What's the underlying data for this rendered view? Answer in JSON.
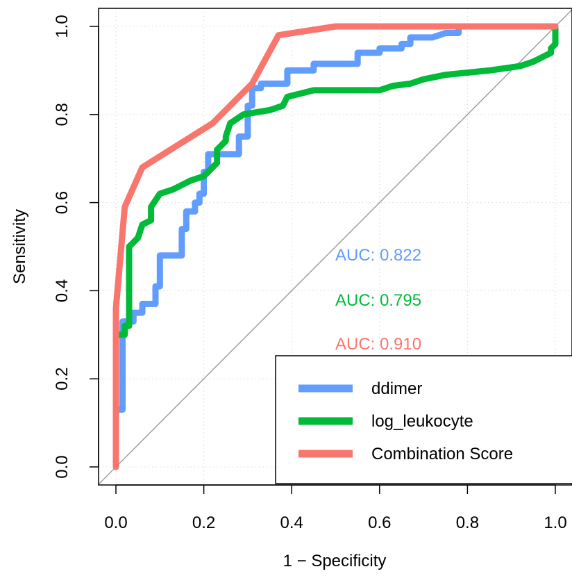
{
  "chart_data": {
    "type": "line",
    "title": "",
    "xlabel": "1 − Specificity",
    "ylabel": "Sensitivity",
    "xlim": [
      0,
      1
    ],
    "ylim": [
      0,
      1
    ],
    "x_ticks": [
      "0.0",
      "0.2",
      "0.4",
      "0.6",
      "0.8",
      "1.0"
    ],
    "y_ticks": [
      "0.0",
      "0.2",
      "0.4",
      "0.6",
      "0.8",
      "1.0"
    ],
    "grid": true,
    "diagonal_reference": true,
    "series": [
      {
        "name": "ddimer",
        "color": "#619CFF",
        "auc_label": "AUC: 0.822",
        "points": [
          [
            0,
            0
          ],
          [
            0,
            0.13
          ],
          [
            0.015,
            0.13
          ],
          [
            0.015,
            0.33
          ],
          [
            0.04,
            0.33
          ],
          [
            0.04,
            0.35
          ],
          [
            0.06,
            0.35
          ],
          [
            0.06,
            0.37
          ],
          [
            0.09,
            0.37
          ],
          [
            0.09,
            0.41
          ],
          [
            0.1,
            0.41
          ],
          [
            0.1,
            0.48
          ],
          [
            0.15,
            0.48
          ],
          [
            0.15,
            0.54
          ],
          [
            0.16,
            0.54
          ],
          [
            0.16,
            0.58
          ],
          [
            0.18,
            0.58
          ],
          [
            0.18,
            0.6
          ],
          [
            0.19,
            0.6
          ],
          [
            0.19,
            0.62
          ],
          [
            0.2,
            0.62
          ],
          [
            0.2,
            0.67
          ],
          [
            0.21,
            0.67
          ],
          [
            0.21,
            0.71
          ],
          [
            0.28,
            0.71
          ],
          [
            0.28,
            0.75
          ],
          [
            0.3,
            0.75
          ],
          [
            0.3,
            0.82
          ],
          [
            0.31,
            0.82
          ],
          [
            0.31,
            0.86
          ],
          [
            0.33,
            0.86
          ],
          [
            0.33,
            0.87
          ],
          [
            0.37,
            0.87
          ],
          [
            0.39,
            0.87
          ],
          [
            0.39,
            0.9
          ],
          [
            0.45,
            0.9
          ],
          [
            0.45,
            0.915
          ],
          [
            0.55,
            0.915
          ],
          [
            0.55,
            0.94
          ],
          [
            0.6,
            0.94
          ],
          [
            0.6,
            0.95
          ],
          [
            0.65,
            0.95
          ],
          [
            0.65,
            0.96
          ],
          [
            0.67,
            0.96
          ],
          [
            0.67,
            0.975
          ],
          [
            0.72,
            0.975
          ],
          [
            0.75,
            0.985
          ],
          [
            0.78,
            0.985
          ],
          [
            0.78,
            1
          ],
          [
            1,
            1
          ]
        ]
      },
      {
        "name": "log_leukocyte",
        "color": "#00BA38",
        "auc_label": "AUC: 0.795",
        "points": [
          [
            0,
            0
          ],
          [
            0,
            0.3
          ],
          [
            0.02,
            0.3
          ],
          [
            0.02,
            0.32
          ],
          [
            0.03,
            0.32
          ],
          [
            0.03,
            0.5
          ],
          [
            0.05,
            0.52
          ],
          [
            0.06,
            0.55
          ],
          [
            0.08,
            0.56
          ],
          [
            0.08,
            0.59
          ],
          [
            0.1,
            0.62
          ],
          [
            0.13,
            0.63
          ],
          [
            0.17,
            0.65
          ],
          [
            0.2,
            0.66
          ],
          [
            0.23,
            0.69
          ],
          [
            0.23,
            0.72
          ],
          [
            0.25,
            0.74
          ],
          [
            0.25,
            0.75
          ],
          [
            0.26,
            0.78
          ],
          [
            0.29,
            0.8
          ],
          [
            0.32,
            0.805
          ],
          [
            0.35,
            0.81
          ],
          [
            0.38,
            0.82
          ],
          [
            0.39,
            0.84
          ],
          [
            0.45,
            0.855
          ],
          [
            0.6,
            0.855
          ],
          [
            0.63,
            0.865
          ],
          [
            0.67,
            0.87
          ],
          [
            0.7,
            0.88
          ],
          [
            0.75,
            0.89
          ],
          [
            0.85,
            0.9
          ],
          [
            0.92,
            0.91
          ],
          [
            0.95,
            0.92
          ],
          [
            0.97,
            0.93
          ],
          [
            0.99,
            0.94
          ],
          [
            0.99,
            0.95
          ],
          [
            1,
            0.96
          ],
          [
            1,
            1
          ]
        ]
      },
      {
        "name": "Combination Score",
        "color": "#F8766D",
        "auc_label": "AUC: 0.910",
        "points": [
          [
            0,
            0
          ],
          [
            0,
            0.36
          ],
          [
            0.02,
            0.59
          ],
          [
            0.06,
            0.68
          ],
          [
            0.22,
            0.78
          ],
          [
            0.31,
            0.87
          ],
          [
            0.37,
            0.98
          ],
          [
            0.5,
            1
          ],
          [
            1,
            1
          ]
        ]
      }
    ],
    "legend": {
      "position": "bottom-right",
      "entries": [
        "ddimer",
        "log_leukocyte",
        "Combination Score"
      ]
    }
  },
  "colors": {
    "ddimer": "#619CFF",
    "log_leukocyte": "#00BA38",
    "combination": "#F8766D",
    "grid": "#d9d9d9",
    "diagonal": "#a0a0a0",
    "axis": "#000000"
  }
}
